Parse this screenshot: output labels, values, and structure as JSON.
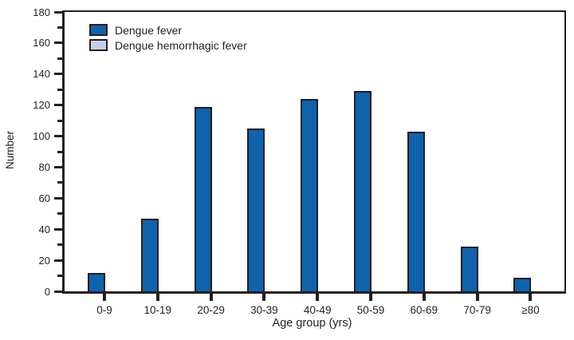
{
  "figure": {
    "background": "#ffffff",
    "text_color": "#231f20"
  },
  "chart_data": {
    "type": "bar",
    "title": "",
    "xlabel": "Age group (yrs)",
    "ylabel": "Number",
    "categories": [
      "0-9",
      "10-19",
      "20-29",
      "30-39",
      "40-49",
      "50-59",
      "60-69",
      "70-79",
      "≥80"
    ],
    "series": [
      {
        "name": "Dengue fever",
        "color": "#0f63ad",
        "values": [
          12,
          47,
          119,
          105,
          124,
          129,
          103,
          29,
          9
        ]
      },
      {
        "name": "Dengue hemorrhagic fever",
        "color": "#c5cfe9",
        "values": [
          0,
          0,
          0,
          0,
          0,
          0,
          0,
          0,
          0
        ]
      }
    ],
    "ylim": [
      0,
      180
    ],
    "ytick_major": 20,
    "ytick_minor": 10,
    "grid": false,
    "legend_position": "top-left-inside",
    "axis_color": "#231f20",
    "bar_border_color": "#231f20"
  }
}
